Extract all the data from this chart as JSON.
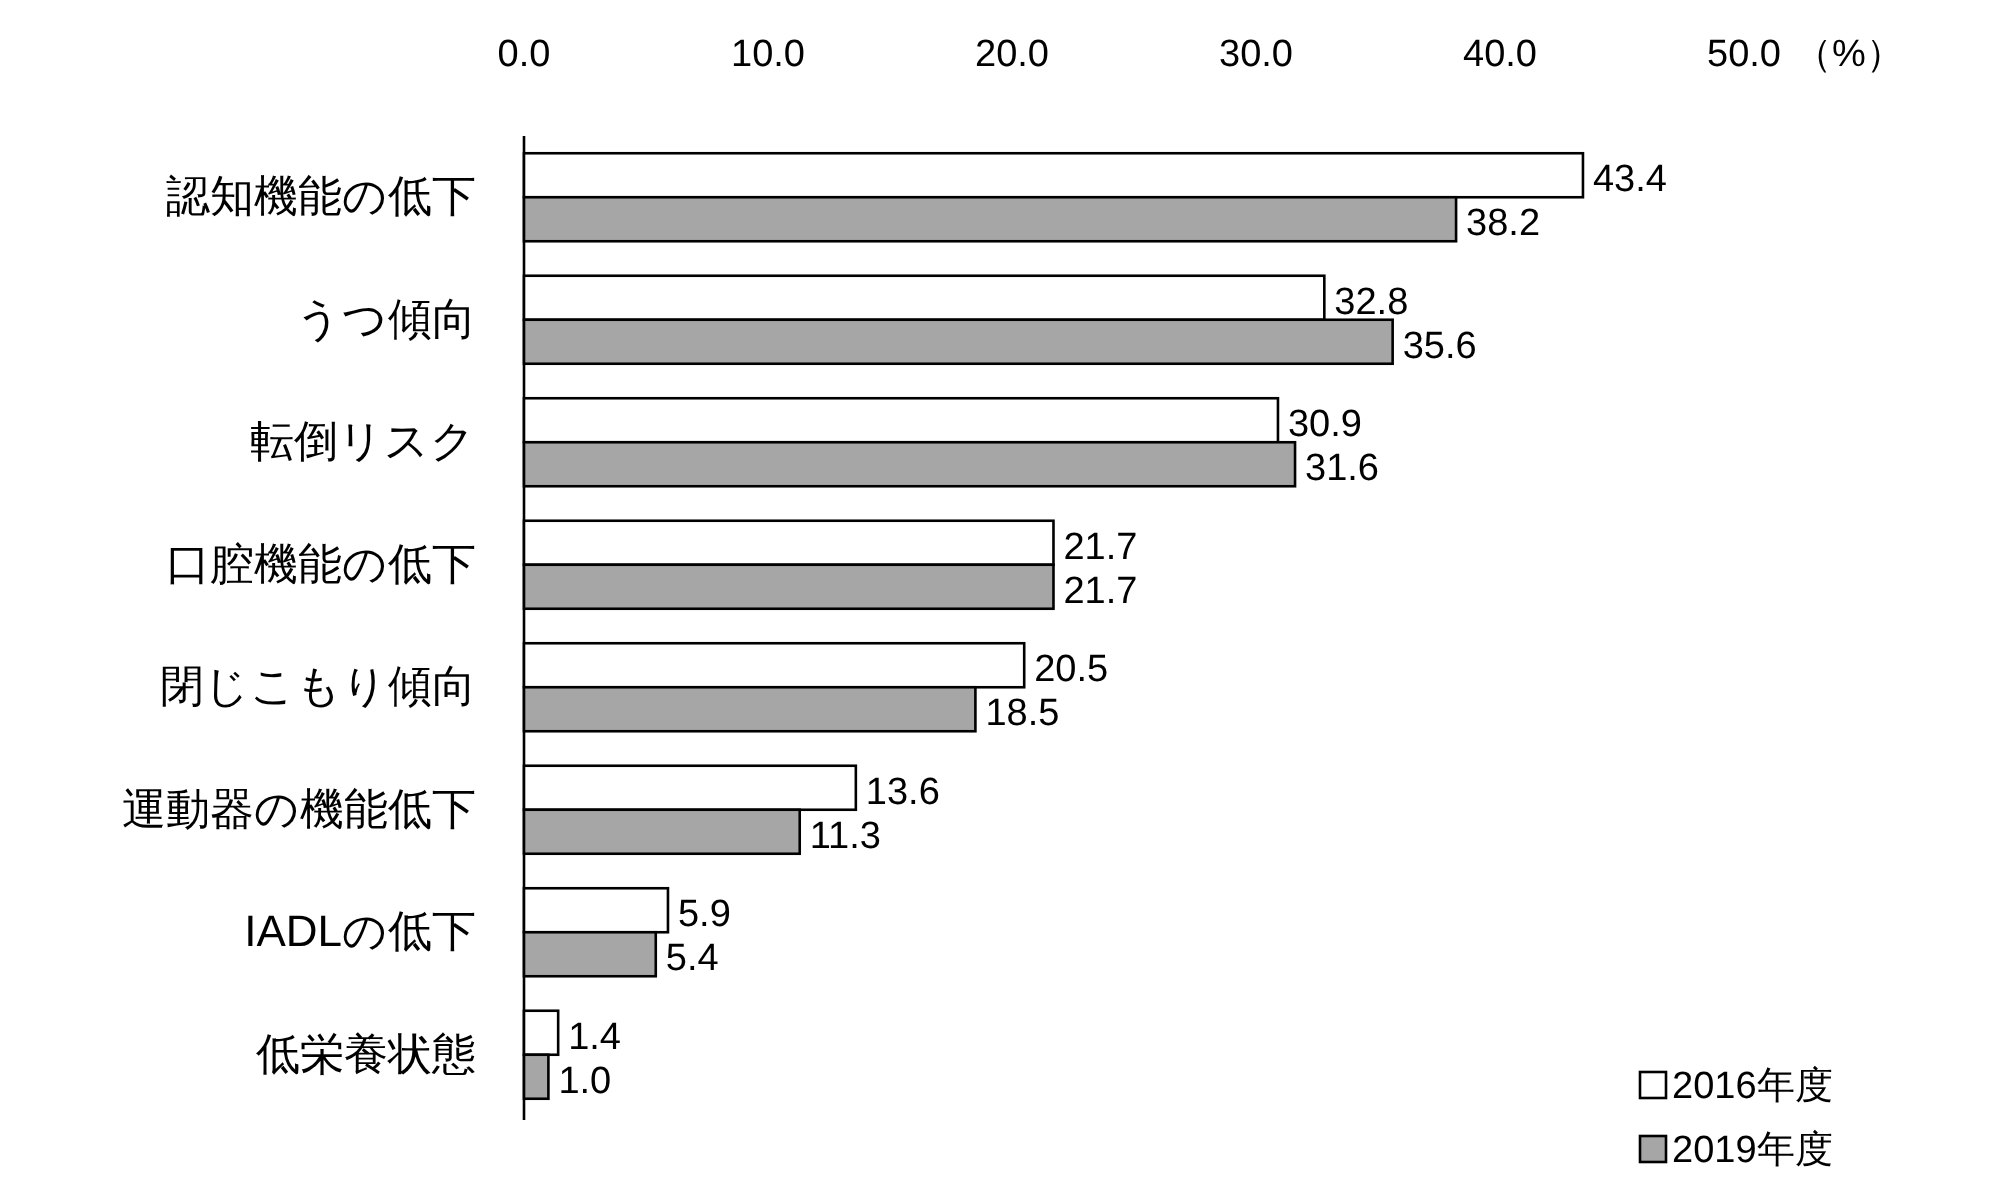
{
  "chart_data": {
    "type": "bar",
    "orientation": "horizontal",
    "categories": [
      "認知機能の低下",
      "うつ傾向",
      "転倒リスク",
      "口腔機能の低下",
      "閉じこもり傾向",
      "運動器の機能低下",
      "IADLの低下",
      "低栄養状態"
    ],
    "series": [
      {
        "name": "2016年度",
        "color": "#ffffff",
        "values": [
          43.4,
          32.8,
          30.9,
          21.7,
          20.5,
          13.6,
          5.9,
          1.4
        ],
        "value_labels": [
          "43.4",
          "32.8",
          "30.9",
          "21.7",
          "20.5",
          "13.6",
          "5.9",
          "1.4"
        ]
      },
      {
        "name": "2019年度",
        "color": "#a6a6a6",
        "values": [
          38.2,
          35.6,
          31.6,
          21.7,
          18.5,
          11.3,
          5.4,
          1.0
        ],
        "value_labels": [
          "38.2",
          "35.6",
          "31.6",
          "21.7",
          "18.5",
          "11.3",
          "5.4",
          "1.0"
        ]
      }
    ],
    "xlim": [
      0,
      50
    ],
    "xticks": [
      {
        "value": 0,
        "label": "0.0"
      },
      {
        "value": 10,
        "label": "10.0"
      },
      {
        "value": 20,
        "label": "20.0"
      },
      {
        "value": 30,
        "label": "30.0"
      },
      {
        "value": 40,
        "label": "40.0"
      },
      {
        "value": 50,
        "label": "50.0"
      }
    ],
    "xlabel": "（%）",
    "legend": "bottom right",
    "grid": false
  }
}
